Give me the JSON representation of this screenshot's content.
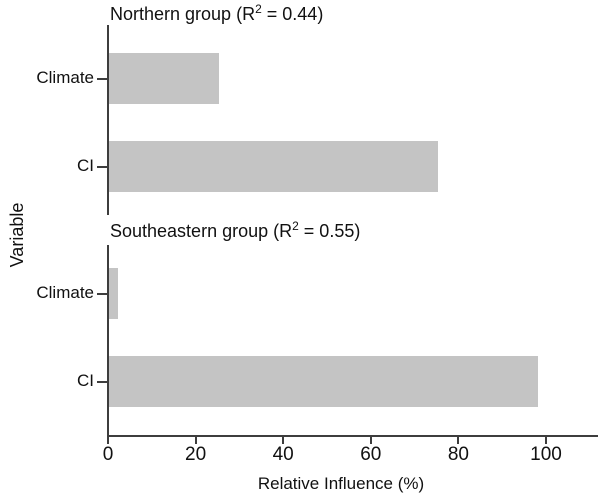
{
  "chart_data": {
    "type": "bar",
    "orientation": "horizontal",
    "xlabel": "Relative Influence (%)",
    "ylabel": "Variable",
    "xlim": [
      0,
      112
    ],
    "xticks": [
      0,
      20,
      40,
      60,
      80,
      100
    ],
    "grid": false,
    "legend": "none",
    "bar_color": "#c4c4c4",
    "axis_color": "#3d3d3d",
    "text_color": "#111111",
    "panels": [
      {
        "title": "Northern group (R² = 0.44)",
        "title_prefix": "Northern group (R",
        "title_sup": "2",
        "title_suffix": " = 0.44)",
        "r_squared": 0.44,
        "categories": [
          "Climate",
          "CI"
        ],
        "values": [
          25,
          75
        ]
      },
      {
        "title": "Southeastern group (R² = 0.55)",
        "title_prefix": "Southeastern group (R",
        "title_sup": "2",
        "title_suffix": " = 0.55)",
        "r_squared": 0.55,
        "categories": [
          "Climate",
          "CI"
        ],
        "values": [
          2,
          98
        ]
      }
    ]
  }
}
